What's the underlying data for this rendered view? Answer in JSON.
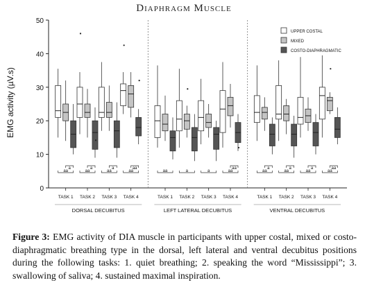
{
  "chart_data": {
    "type": "boxplot",
    "title": "Diaphragm Muscle",
    "ylabel": "EMG activity (µV.s)",
    "ylim": [
      0,
      50
    ],
    "yticks": [
      0,
      10,
      20,
      30,
      40,
      50
    ],
    "grid": false,
    "legend_position": "top-right",
    "series": [
      {
        "name": "UPPER COSTAL",
        "color": "#ffffff"
      },
      {
        "name": "MIXED",
        "color": "#c4c4c4"
      },
      {
        "name": "COSTO-DIAPHRAGMATIC",
        "color": "#555555"
      }
    ],
    "task_labels": [
      "TASK 1",
      "TASK 2",
      "TASK 3",
      "TASK 4"
    ],
    "groups": [
      {
        "name": "DORSAL DECUBITUS",
        "tasks": [
          {
            "sig_top": "a",
            "sig_bottom": "aa",
            "boxes": [
              {
                "min": 15,
                "q1": 21,
                "median": 23,
                "q3": 30.5,
                "max": 35.5,
                "outliers": []
              },
              {
                "min": 14,
                "q1": 20,
                "median": 22.5,
                "q3": 25,
                "max": 32,
                "outliers": []
              },
              {
                "min": 10,
                "q1": 12,
                "median": 16,
                "q3": 20,
                "max": 25,
                "outliers": []
              }
            ]
          },
          {
            "sig_top": "a",
            "sig_bottom": "aa",
            "boxes": [
              {
                "min": 16,
                "q1": 21,
                "median": 25,
                "q3": 30,
                "max": 34.5,
                "outliers": [
                  46
                ]
              },
              {
                "min": 15,
                "q1": 21,
                "median": 22.5,
                "q3": 25,
                "max": 29.5,
                "outliers": []
              },
              {
                "min": 9,
                "q1": 11.5,
                "median": 16.5,
                "q3": 20,
                "max": 24,
                "outliers": [
                  14.2
                ]
              }
            ]
          },
          {
            "sig_top": "a",
            "sig_bottom": "aa",
            "boxes": [
              {
                "min": 17,
                "q1": 21,
                "median": 22.5,
                "q3": 30,
                "max": 37.5,
                "outliers": []
              },
              {
                "min": 17,
                "q1": 21,
                "median": 22.5,
                "q3": 25.5,
                "max": 30.5,
                "outliers": []
              },
              {
                "min": 9,
                "q1": 12,
                "median": 17,
                "q3": 20,
                "max": 25.5,
                "outliers": []
              }
            ]
          },
          {
            "sig_top": "aa",
            "sig_bottom": "aa",
            "boxes": [
              {
                "min": 22,
                "q1": 24.5,
                "median": 29,
                "q3": 31,
                "max": 34.5,
                "outliers": [
                  42.5
                ]
              },
              {
                "min": 21,
                "q1": 24,
                "median": 28,
                "q3": 30.5,
                "max": 34.5,
                "outliers": []
              },
              {
                "min": 13,
                "q1": 15.5,
                "median": 18,
                "q3": 21,
                "max": 23.5,
                "outliers": [
                  32
                ]
              }
            ]
          }
        ]
      },
      {
        "name": "LEFT LATERAL DECUBITUS",
        "tasks": [
          {
            "sig_top": "",
            "sig_bottom": "aa",
            "boxes": [
              {
                "min": 12,
                "q1": 15,
                "median": 20,
                "q3": 24.5,
                "max": 36.5,
                "outliers": []
              },
              {
                "min": 14,
                "q1": 17,
                "median": 19,
                "q3": 22,
                "max": 27.5,
                "outliers": []
              },
              {
                "min": 8.5,
                "q1": 11,
                "median": 15,
                "q3": 17,
                "max": 21,
                "outliers": []
              }
            ]
          },
          {
            "sig_top": "",
            "sig_bottom": "a",
            "boxes": [
              {
                "min": 12,
                "q1": 17,
                "median": 20.5,
                "q3": 26,
                "max": 35.5,
                "outliers": []
              },
              {
                "min": 15,
                "q1": 17.5,
                "median": 20,
                "q3": 22,
                "max": 24.5,
                "outliers": [
                  29.5
                ]
              },
              {
                "min": 8,
                "q1": 11,
                "median": 15,
                "q3": 18,
                "max": 22,
                "outliers": []
              }
            ]
          },
          {
            "sig_top": "",
            "sig_bottom": "a",
            "boxes": [
              {
                "min": 13,
                "q1": 17,
                "median": 21,
                "q3": 26,
                "max": 32.5,
                "outliers": []
              },
              {
                "min": 15,
                "q1": 18,
                "median": 19.5,
                "q3": 22,
                "max": 25,
                "outliers": []
              },
              {
                "min": 8,
                "q1": 11.5,
                "median": 16,
                "q3": 18,
                "max": 20,
                "outliers": []
              }
            ]
          },
          {
            "sig_top": "aa",
            "sig_bottom": "aa",
            "boxes": [
              {
                "min": 12,
                "q1": 16.5,
                "median": 23.5,
                "q3": 29,
                "max": 37.5,
                "outliers": []
              },
              {
                "min": 18,
                "q1": 21.5,
                "median": 24.5,
                "q3": 27,
                "max": 31,
                "outliers": []
              },
              {
                "min": 11,
                "q1": 13.5,
                "median": 16.5,
                "q3": 19.5,
                "max": 22,
                "outliers": [
                  12
                ]
              }
            ]
          }
        ]
      },
      {
        "name": "VENTRAL DECUBITUS",
        "tasks": [
          {
            "sig_top": "a",
            "sig_bottom": "aa",
            "boxes": [
              {
                "min": 14,
                "q1": 19.5,
                "median": 22.5,
                "q3": 27.5,
                "max": 36.5,
                "outliers": []
              },
              {
                "min": 17,
                "q1": 20.5,
                "median": 22.5,
                "q3": 24,
                "max": 27,
                "outliers": []
              },
              {
                "min": 10,
                "q1": 12.5,
                "median": 16,
                "q3": 19,
                "max": 21,
                "outliers": []
              }
            ]
          },
          {
            "sig_top": "a",
            "sig_bottom": "aa",
            "boxes": [
              {
                "min": 14,
                "q1": 20.5,
                "median": 22,
                "q3": 30.5,
                "max": 38,
                "outliers": []
              },
              {
                "min": 16,
                "q1": 20,
                "median": 22,
                "q3": 24.5,
                "max": 26.5,
                "outliers": []
              },
              {
                "min": 9,
                "q1": 12.5,
                "median": 16,
                "q3": 19,
                "max": 21.5,
                "outliers": []
              }
            ]
          },
          {
            "sig_top": "a",
            "sig_bottom": "aa",
            "boxes": [
              {
                "min": 15,
                "q1": 19,
                "median": 21,
                "q3": 27,
                "max": 39,
                "outliers": []
              },
              {
                "min": 17,
                "q1": 19.5,
                "median": 21.5,
                "q3": 23.5,
                "max": 27,
                "outliers": []
              },
              {
                "min": 10,
                "q1": 12.5,
                "median": 16.5,
                "q3": 19.5,
                "max": 22,
                "outliers": []
              }
            ]
          },
          {
            "sig_top": "aa",
            "sig_bottom": "aa",
            "boxes": [
              {
                "min": 15,
                "q1": 20.5,
                "median": 27.5,
                "q3": 30,
                "max": 39.5,
                "outliers": []
              },
              {
                "min": 22,
                "q1": 23,
                "median": 26,
                "q3": 27,
                "max": 28.5,
                "outliers": [
                  35.5
                ]
              },
              {
                "min": 13,
                "q1": 15,
                "median": 17.5,
                "q3": 21,
                "max": 24,
                "outliers": []
              }
            ]
          }
        ]
      }
    ]
  },
  "caption": {
    "label": "Figure 3:",
    "text": " EMG activity of DIA muscle in participants with upper costal, mixed or costo-diaphragmatic breathing type in the dorsal, left lateral and ventral decubitus positions during the following tasks: 1. quiet breathing; 2. speaking the word “Mississippi”; 3. swallowing of saliva; 4. sustained maximal inspiration."
  }
}
